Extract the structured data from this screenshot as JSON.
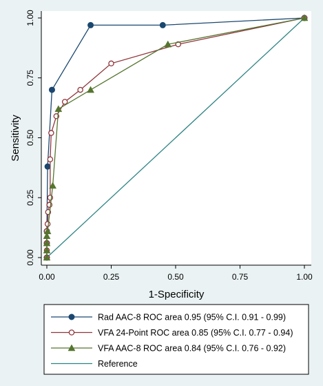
{
  "chart_data": {
    "type": "line",
    "title": "",
    "xlabel": "1-Specificity",
    "ylabel": "Sensitivity",
    "xlim": [
      0,
      1
    ],
    "ylim": [
      0,
      1
    ],
    "x_ticks": [
      "0.00",
      "0.25",
      "0.50",
      "0.75",
      "1.00"
    ],
    "y_ticks": [
      "0.00",
      "0.25",
      "0.50",
      "0.75",
      "1.00"
    ],
    "grid": false,
    "legend_position": "bottom",
    "series": [
      {
        "name": "Rad AAC-8 ROC area 0.95 (95% C.I. 0.91 - 0.99)",
        "color": "#1a476f",
        "marker": "filled-circle",
        "x": [
          0,
          0,
          0,
          0.003,
          0.02,
          0.17,
          0.45,
          1.0
        ],
        "y": [
          0,
          0.06,
          0.11,
          0.38,
          0.7,
          0.97,
          0.97,
          1.0
        ]
      },
      {
        "name": "VFA 24-Point ROC area 0.85 (95% C.I. 0.77 - 0.94)",
        "color": "#90353b",
        "marker": "hollow-circle",
        "x": [
          0,
          0,
          0,
          0,
          0.003,
          0.005,
          0.01,
          0.01,
          0.013,
          0.013,
          0.017,
          0.037,
          0.07,
          0.13,
          0.25,
          0.51,
          1.0
        ],
        "y": [
          0,
          0.03,
          0.06,
          0.11,
          0.14,
          0.19,
          0.22,
          0.22,
          0.25,
          0.41,
          0.52,
          0.59,
          0.65,
          0.7,
          0.81,
          0.89,
          1.0
        ]
      },
      {
        "name": "VFA AAC-8 ROC area 0.84 (95% C.I. 0.76 - 0.92)",
        "color": "#55752f",
        "marker": "filled-triangle",
        "x": [
          0,
          0,
          0,
          0,
          0.003,
          0.023,
          0.045,
          0.17,
          0.47,
          1.0
        ],
        "y": [
          0,
          0.03,
          0.06,
          0.09,
          0.11,
          0.3,
          0.62,
          0.7,
          0.89,
          1.0
        ]
      },
      {
        "name": "Reference",
        "color": "#2d8384",
        "marker": "none",
        "x": [
          0,
          1
        ],
        "y": [
          0,
          1
        ]
      }
    ]
  }
}
